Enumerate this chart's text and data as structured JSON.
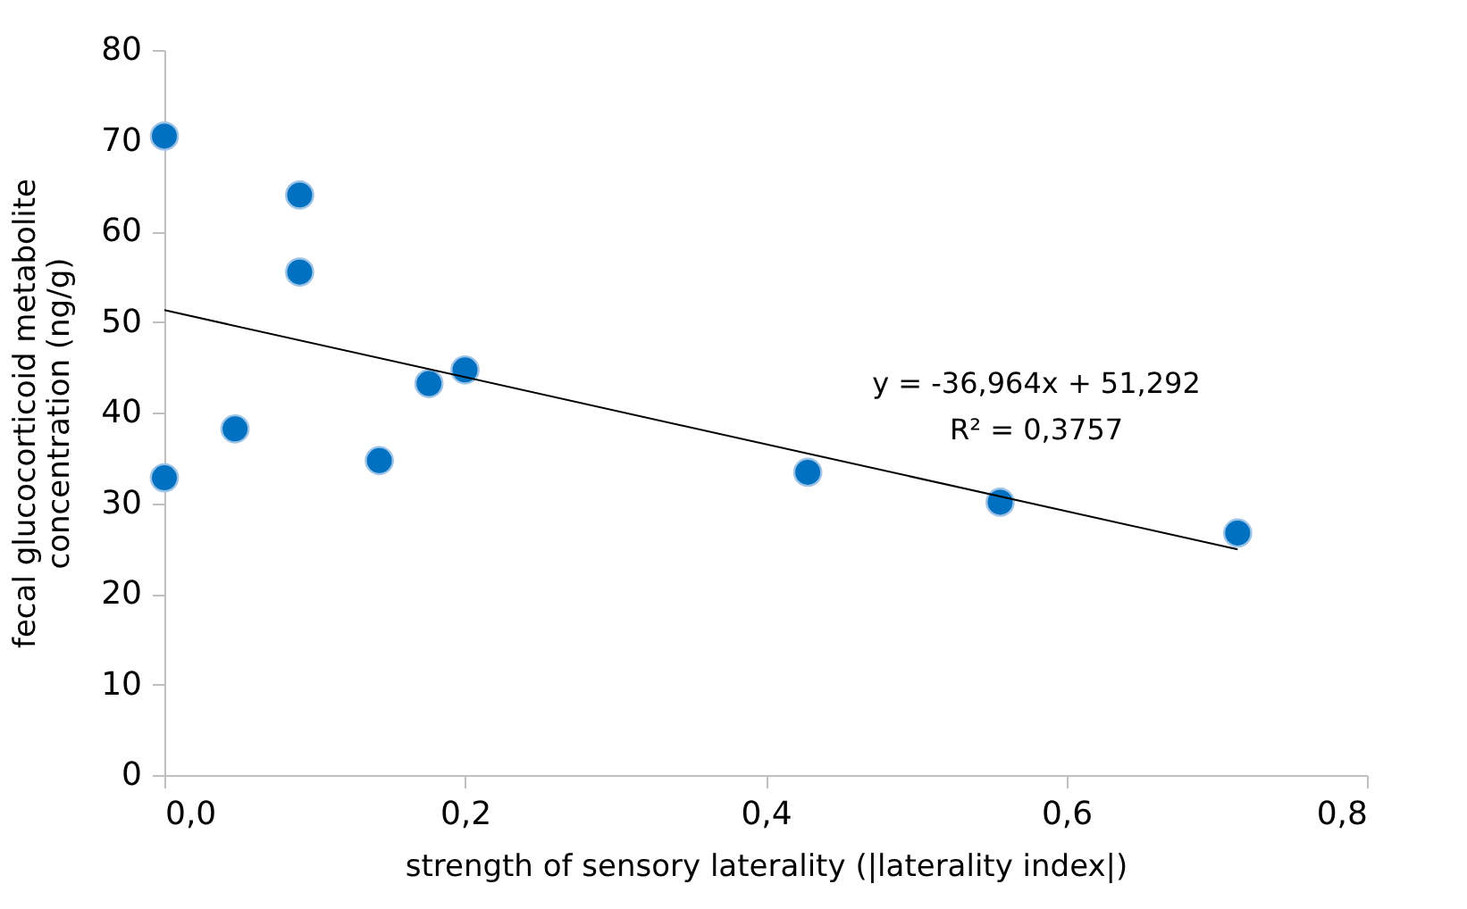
{
  "chart_data": {
    "type": "scatter",
    "xlabel": "strength of sensory laterality (|laterality index|)",
    "ylabel": "fecal glucocorticoid metabolite\nconcentration  (ng/g)",
    "x": [
      0,
      0,
      0.047,
      0.09,
      0.09,
      0.143,
      0.176,
      0.2,
      0.428,
      0.556,
      0.714
    ],
    "series": [
      {
        "marker": "circle",
        "color": "#0070c0",
        "values": [
          70.5,
          32.8,
          38.2,
          64.0,
          55.5,
          34.7,
          43.2,
          44.7,
          33.4,
          30.1,
          26.7
        ]
      },
      {
        "type": "line",
        "color": "#000000",
        "x": [
          0,
          0.714
        ],
        "values": [
          51.3,
          24.9
        ]
      }
    ],
    "annotations": [
      "y = -36,964x + 51,292",
      "R² = 0,3757"
    ],
    "xlim": [
      0,
      0.8
    ],
    "xticks": [
      {
        "value": 0,
        "label": "0,0"
      },
      {
        "value": 0.2,
        "label": "0,2"
      },
      {
        "value": 0.4,
        "label": "0,4"
      },
      {
        "value": 0.6,
        "label": "0,6"
      },
      {
        "value": 0.8,
        "label": "0,8"
      }
    ],
    "ylim": [
      0,
      80
    ],
    "yticks": [
      0,
      10,
      20,
      30,
      40,
      50,
      60,
      70,
      80
    ],
    "grid": false,
    "line_style": "solid"
  }
}
